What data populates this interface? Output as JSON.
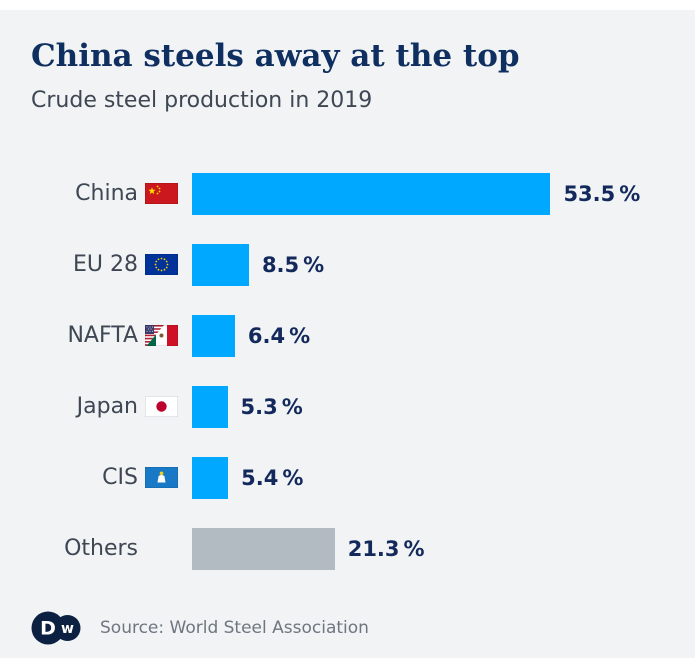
{
  "header": {
    "title": "China steels away at the top",
    "subtitle": "Crude steel production in 2019"
  },
  "percent_sign": "%",
  "footer": {
    "source": "Source: World Steel Association",
    "logo": "DW"
  },
  "colors": {
    "bar_blue": "#00a8ff",
    "bar_gray": "#b2bac2",
    "background": "#f1f3f5",
    "title_navy": "#0e2f5f",
    "value_navy": "#13295c",
    "label_gray": "#3e4753",
    "dw_navy": "#0c2142"
  },
  "chart_data": {
    "type": "bar",
    "orientation": "horizontal",
    "title": "China steels away at the top",
    "subtitle": "Crude steel production in 2019",
    "categories": [
      "China",
      "EU 28",
      "NAFTA",
      "Japan",
      "CIS",
      "Others"
    ],
    "values": [
      53.5,
      8.5,
      6.4,
      5.3,
      5.4,
      21.3
    ],
    "unit": "%",
    "xlim": [
      0,
      60
    ],
    "grid": false,
    "legend": false,
    "bar_colors": [
      "#00a8ff",
      "#00a8ff",
      "#00a8ff",
      "#00a8ff",
      "#00a8ff",
      "#b2bac2"
    ],
    "source": "World Steel Association",
    "rows": [
      {
        "label": "China",
        "flag": "china-flag",
        "value": 53.5,
        "value_label": "53.5"
      },
      {
        "label": "EU 28",
        "flag": "eu-flag",
        "value": 8.5,
        "value_label": "8.5"
      },
      {
        "label": "NAFTA",
        "flag": "nafta-flag",
        "value": 6.4,
        "value_label": "6.4"
      },
      {
        "label": "Japan",
        "flag": "japan-flag",
        "value": 5.3,
        "value_label": "5.3"
      },
      {
        "label": "CIS",
        "flag": "cis-flag",
        "value": 5.4,
        "value_label": "5.4"
      },
      {
        "label": "Others",
        "flag": "none",
        "value": 21.3,
        "value_label": "21.3"
      }
    ]
  }
}
